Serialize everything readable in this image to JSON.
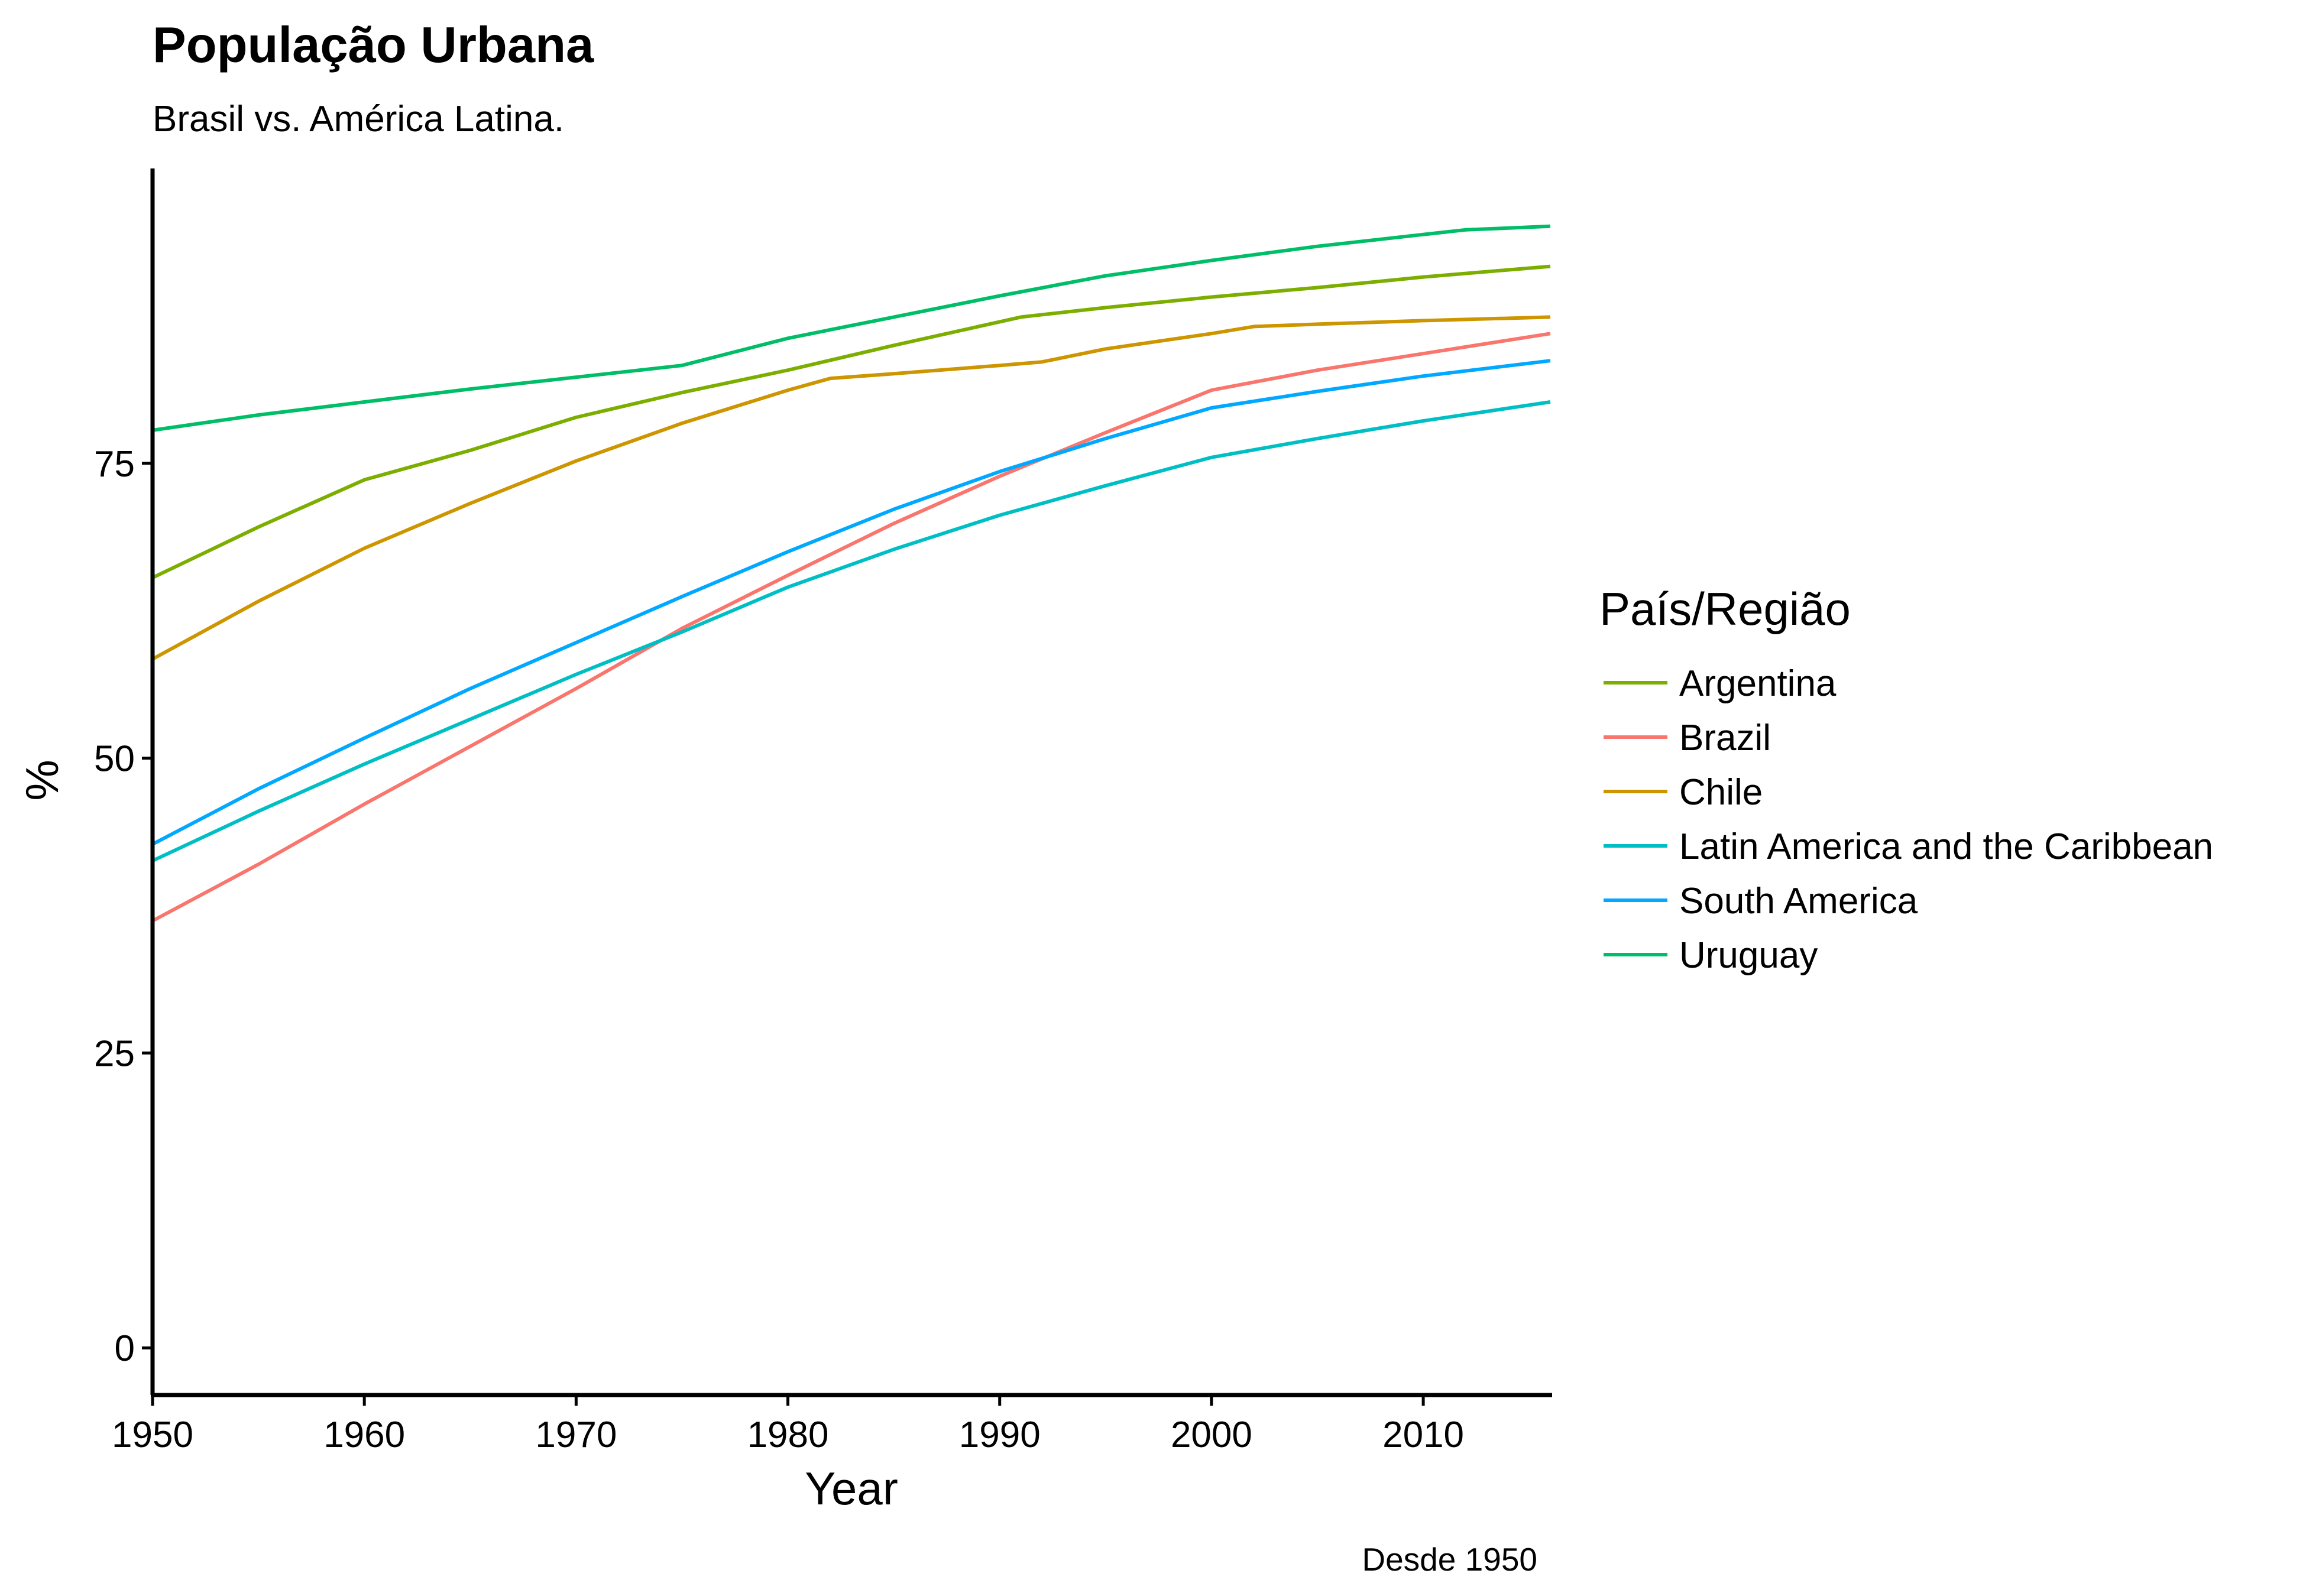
{
  "chart_data": {
    "type": "line",
    "title": "População Urbana",
    "subtitle": "Brasil vs. América Latina.",
    "caption": "Desde 1950",
    "xlabel": "Year",
    "ylabel": "%",
    "xlim": [
      1950,
      2016
    ],
    "ylim": [
      -4,
      100
    ],
    "x_ticks": [
      1950,
      1960,
      1970,
      1980,
      1990,
      2000,
      2010
    ],
    "y_ticks": [
      0,
      25,
      50,
      75
    ],
    "grid": false,
    "legend": {
      "title": "País/Região",
      "position": "right"
    },
    "series": [
      {
        "name": "Argentina",
        "color": "#7CAE00",
        "points": [
          [
            1950,
            65.3
          ],
          [
            1955,
            69.6
          ],
          [
            1960,
            73.6
          ],
          [
            1965,
            76.1
          ],
          [
            1970,
            78.9
          ],
          [
            1975,
            81.0
          ],
          [
            1980,
            82.9
          ],
          [
            1985,
            85.0
          ],
          [
            1990,
            87.0
          ],
          [
            1991,
            87.4
          ],
          [
            1995,
            88.2
          ],
          [
            2000,
            89.1
          ],
          [
            2005,
            89.9
          ],
          [
            2010,
            90.8
          ],
          [
            2016,
            91.7
          ]
        ]
      },
      {
        "name": "Brazil",
        "color": "#F8766D",
        "points": [
          [
            1950,
            36.2
          ],
          [
            1955,
            41.0
          ],
          [
            1960,
            46.1
          ],
          [
            1965,
            51.0
          ],
          [
            1970,
            55.9
          ],
          [
            1975,
            61.0
          ],
          [
            1980,
            65.5
          ],
          [
            1985,
            69.9
          ],
          [
            1990,
            73.9
          ],
          [
            1995,
            77.6
          ],
          [
            2000,
            81.2
          ],
          [
            2005,
            82.9
          ],
          [
            2010,
            84.3
          ],
          [
            2016,
            86.0
          ]
        ]
      },
      {
        "name": "Chile",
        "color": "#CD9600",
        "points": [
          [
            1950,
            58.4
          ],
          [
            1955,
            63.3
          ],
          [
            1960,
            67.8
          ],
          [
            1965,
            71.6
          ],
          [
            1970,
            75.2
          ],
          [
            1975,
            78.4
          ],
          [
            1980,
            81.2
          ],
          [
            1982,
            82.2
          ],
          [
            1985,
            82.6
          ],
          [
            1990,
            83.3
          ],
          [
            1992,
            83.6
          ],
          [
            1995,
            84.7
          ],
          [
            2000,
            86.0
          ],
          [
            2002,
            86.6
          ],
          [
            2005,
            86.8
          ],
          [
            2010,
            87.1
          ],
          [
            2016,
            87.4
          ]
        ]
      },
      {
        "name": "Latin America and the Caribbean",
        "color": "#00BFC4",
        "points": [
          [
            1950,
            41.3
          ],
          [
            1955,
            45.5
          ],
          [
            1960,
            49.5
          ],
          [
            1965,
            53.3
          ],
          [
            1970,
            57.1
          ],
          [
            1975,
            60.7
          ],
          [
            1980,
            64.5
          ],
          [
            1985,
            67.7
          ],
          [
            1990,
            70.6
          ],
          [
            1995,
            73.1
          ],
          [
            2000,
            75.5
          ],
          [
            2005,
            77.1
          ],
          [
            2010,
            78.6
          ],
          [
            2016,
            80.2
          ]
        ]
      },
      {
        "name": "South America",
        "color": "#00A9FF",
        "points": [
          [
            1950,
            42.7
          ],
          [
            1955,
            47.4
          ],
          [
            1960,
            51.7
          ],
          [
            1965,
            55.9
          ],
          [
            1970,
            59.8
          ],
          [
            1975,
            63.7
          ],
          [
            1980,
            67.5
          ],
          [
            1985,
            71.1
          ],
          [
            1990,
            74.3
          ],
          [
            1995,
            77.1
          ],
          [
            2000,
            79.7
          ],
          [
            2005,
            81.1
          ],
          [
            2010,
            82.4
          ],
          [
            2016,
            83.7
          ]
        ]
      },
      {
        "name": "Uruguay",
        "color": "#00BE67",
        "points": [
          [
            1950,
            77.8
          ],
          [
            1955,
            79.1
          ],
          [
            1960,
            80.2
          ],
          [
            1965,
            81.3
          ],
          [
            1970,
            82.3
          ],
          [
            1975,
            83.3
          ],
          [
            1980,
            85.6
          ],
          [
            1985,
            87.4
          ],
          [
            1990,
            89.2
          ],
          [
            1995,
            90.9
          ],
          [
            2000,
            92.2
          ],
          [
            2005,
            93.4
          ],
          [
            2010,
            94.4
          ],
          [
            2012,
            94.8
          ],
          [
            2016,
            95.1
          ]
        ]
      }
    ]
  }
}
